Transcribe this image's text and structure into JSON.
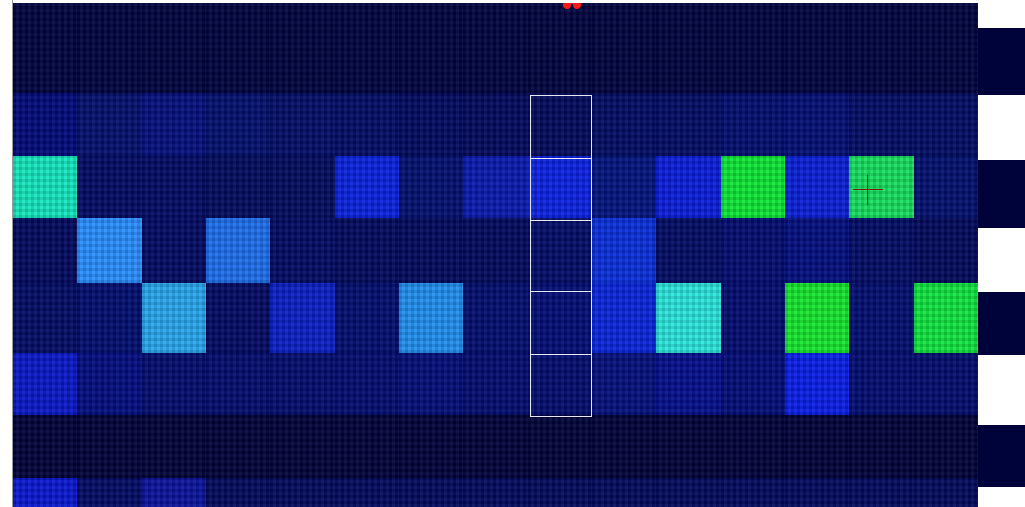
{
  "colors": {
    "background": "#00023a",
    "selection_border": "#e8e8f0",
    "cursor": "#7a1a10",
    "marker": "#ff1a1a"
  },
  "grid": {
    "columns": 15,
    "rows": [
      {
        "cells": [
          "#00033f",
          "#00033f",
          "#00033f",
          "#00033f",
          "#00033f",
          "#00033f",
          "#00033f",
          "#00033f",
          "#00033f",
          "#00033f",
          "#00033f",
          "#00033f",
          "#00033f",
          "#00033f",
          "#00033f"
        ]
      },
      {
        "cells": [
          "#010a7a",
          "#04106e",
          "#031080",
          "#021070",
          "#020d6a",
          "#020c66",
          "#020a60",
          "#020a5e",
          "#020a5e",
          "#020c66",
          "#020c66",
          "#020d70",
          "#030f75",
          "#020c66",
          "#020c66"
        ]
      },
      {
        "cells": [
          "#16e8c0",
          "#020b66",
          "#020b66",
          "#020b60",
          "#020b60",
          "#0a22e0",
          "#021070",
          "#0a1ab0",
          "#0b22e8",
          "#031480",
          "#0b1ee0",
          "#10e838",
          "#0a20d8",
          "#18e060",
          "#021070"
        ]
      },
      {
        "cells": [
          "#020a5e",
          "#2a90ff",
          "#020b66",
          "#1e70f0",
          "#020b66",
          "#020a5e",
          "#020a5e",
          "#020a5e",
          "#020c6a",
          "#0a30e0",
          "#020c66",
          "#020c70",
          "#030f80",
          "#020c66",
          "#020a5e"
        ]
      },
      {
        "cells": [
          "#020c66",
          "#020d70",
          "#28a8f0",
          "#020b66",
          "#0a20c8",
          "#020d70",
          "#2390f0",
          "#020d70",
          "#020d78",
          "#0a26e0",
          "#2ae8e0",
          "#020c70",
          "#18e830",
          "#020d70",
          "#10e840"
        ]
      },
      {
        "cells": [
          "#0a18c8",
          "#020d80",
          "#020c70",
          "#020c70",
          "#020c70",
          "#020c70",
          "#030e78",
          "#020c70",
          "#020c70",
          "#031080",
          "#040f90",
          "#020c78",
          "#0a1fe8",
          "#020c70",
          "#020c70"
        ]
      },
      {
        "cells": [
          "#00033a",
          "#00033a",
          "#00033a",
          "#00033a",
          "#00033a",
          "#00033a",
          "#00033a",
          "#00033a",
          "#00033a",
          "#00033a",
          "#00033a",
          "#00033a",
          "#00033a",
          "#00033a",
          "#00033a"
        ]
      },
      {
        "cells": [
          "#0a18d0",
          "#020b66",
          "#0a14a0",
          "#020a5e",
          "#020a5e",
          "#020a5e",
          "#020a5e",
          "#020a5e",
          "#020a5e",
          "#020a5e",
          "#020a5e",
          "#020a5e",
          "#020a5e",
          "#020a5e",
          "#020a5e"
        ]
      }
    ]
  },
  "strip": {
    "segments": [
      {
        "color": "#ffffff"
      },
      {
        "color": "#00023a"
      },
      {
        "color": "#ffffff"
      },
      {
        "color": "#00023a"
      },
      {
        "color": "#ffffff"
      },
      {
        "color": "#00023a"
      },
      {
        "color": "#ffffff"
      },
      {
        "color": "#00023a"
      },
      {
        "color": "#ffffff"
      }
    ]
  }
}
